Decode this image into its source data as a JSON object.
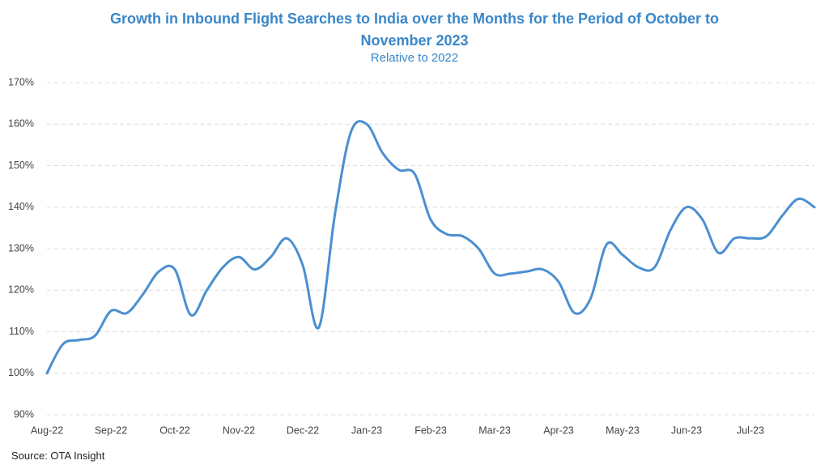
{
  "chart_data": {
    "type": "line",
    "title": "Growth in Inbound Flight Searches to India over the Months for the Period of October to November 2023",
    "subtitle": "Relative to 2022",
    "source": "Source: OTA Insight",
    "categories": [
      "Aug-22",
      null,
      null,
      null,
      "Sep-22",
      null,
      null,
      null,
      "Oct-22",
      null,
      null,
      null,
      "Nov-22",
      null,
      null,
      null,
      "Dec-22",
      null,
      null,
      null,
      "Jan-23",
      null,
      null,
      null,
      "Feb-23",
      null,
      null,
      null,
      "Mar-23",
      null,
      null,
      null,
      "Apr-23",
      null,
      null,
      null,
      "May-23",
      null,
      null,
      null,
      "Jun-23",
      null,
      null,
      null,
      "Jul-23",
      null,
      null,
      null,
      null
    ],
    "values": [
      100,
      107,
      108,
      109,
      115,
      114.5,
      119,
      124.5,
      125,
      114,
      120,
      125.5,
      128,
      125,
      128,
      132.5,
      126,
      111,
      138,
      158,
      160,
      153,
      149,
      148,
      137,
      133.5,
      133,
      130,
      124,
      124,
      124.5,
      125,
      122,
      114.5,
      118,
      131,
      128.5,
      125.5,
      125.5,
      134.5,
      140,
      137,
      129,
      132.5,
      132.5,
      133,
      138,
      142,
      140
    ],
    "color": "#4a8fd1",
    "ylim": [
      90,
      170
    ],
    "yticks": [
      {
        "value": 90,
        "label": "90%"
      },
      {
        "value": 100,
        "label": "100%"
      },
      {
        "value": 110,
        "label": "110%"
      },
      {
        "value": 120,
        "label": "120%"
      },
      {
        "value": 130,
        "label": "130%"
      },
      {
        "value": 140,
        "label": "140%"
      },
      {
        "value": 150,
        "label": "150%"
      },
      {
        "value": 160,
        "label": "160%"
      },
      {
        "value": 170,
        "label": "170%"
      }
    ],
    "grid": true
  }
}
